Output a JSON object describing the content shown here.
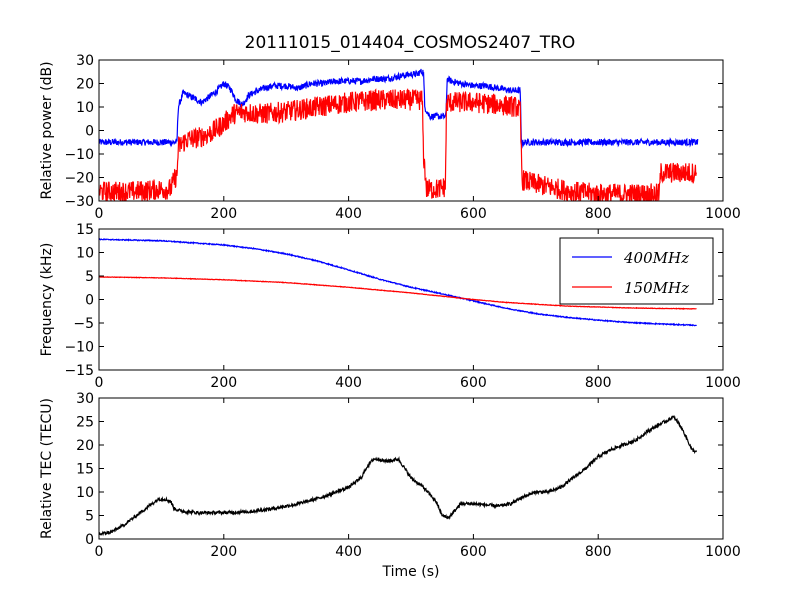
{
  "title": "20111015_014404_COSMOS2407_TRO",
  "chart_data": [
    {
      "type": "line",
      "id": "power",
      "title": "20111015_014404_COSMOS2407_TRO",
      "xlabel": "",
      "ylabel": "Relative power (dB)",
      "xlim": [
        0,
        1000
      ],
      "ylim": [
        -30,
        30
      ],
      "xticks": [
        "0",
        "200",
        "400",
        "600",
        "800",
        "1000"
      ],
      "yticks": [
        "−30",
        "−20",
        "−10",
        "0",
        "10",
        "20",
        "30"
      ],
      "grid": false,
      "series": [
        {
          "color": "#0000ff",
          "noise": 1.4,
          "x": [
            0,
            30,
            60,
            90,
            110,
            125,
            127,
            135,
            150,
            165,
            180,
            190,
            200,
            210,
            220,
            230,
            240,
            255,
            265,
            280,
            300,
            320,
            340,
            360,
            380,
            400,
            420,
            440,
            460,
            480,
            500,
            510,
            515,
            520,
            522,
            530,
            545,
            556,
            558,
            565,
            580,
            600,
            620,
            640,
            660,
            675,
            677,
            680,
            700,
            750,
            800,
            850,
            900,
            950,
            960
          ],
          "y": [
            -5,
            -5,
            -5,
            -5,
            -5,
            -5,
            10,
            16,
            14,
            12,
            15,
            17,
            20,
            18,
            13,
            11,
            15,
            17,
            18,
            19,
            19,
            18,
            20,
            20,
            21,
            21,
            21,
            22,
            22,
            23,
            24,
            24,
            25,
            25,
            10,
            6,
            6,
            6,
            22,
            21,
            20,
            19,
            19,
            18,
            17,
            17,
            -6,
            -5,
            -5,
            -5,
            -5,
            -5,
            -5,
            -5,
            -5
          ]
        },
        {
          "color": "#ff0000",
          "noise": 4.5,
          "x": [
            0,
            50,
            100,
            115,
            122,
            125,
            127,
            140,
            160,
            180,
            200,
            215,
            230,
            260,
            300,
            350,
            400,
            450,
            500,
            518,
            520,
            525,
            540,
            555,
            557,
            560,
            600,
            640,
            670,
            675,
            678,
            690,
            720,
            760,
            800,
            850,
            890,
            898,
            900,
            930,
            958
          ],
          "y": [
            -26,
            -26,
            -25,
            -25,
            -20,
            -20,
            -7,
            -4,
            -3,
            -1,
            3,
            7,
            8,
            7,
            8,
            10,
            12,
            13,
            13,
            13,
            -10,
            -25,
            -25,
            -24,
            12,
            12,
            12,
            11,
            10,
            8,
            -21,
            -22,
            -24,
            -26,
            -27,
            -27,
            -27,
            -27,
            -18,
            -18,
            -18
          ]
        }
      ]
    },
    {
      "type": "line",
      "id": "frequency",
      "xlabel": "",
      "ylabel": "Frequency (kHz)",
      "xlim": [
        0,
        1000
      ],
      "ylim": [
        -15,
        15
      ],
      "xticks": [
        "0",
        "200",
        "400",
        "600",
        "800",
        "1000"
      ],
      "yticks": [
        "−15",
        "−10",
        "−5",
        "0",
        "5",
        "10",
        "15"
      ],
      "grid": false,
      "legend_position": "top-right",
      "series": [
        {
          "name": "400MHz",
          "color": "#0000ff",
          "noise": 0.1,
          "x": [
            0,
            100,
            200,
            250,
            300,
            350,
            400,
            450,
            500,
            550,
            580,
            600,
            650,
            700,
            750,
            800,
            850,
            900,
            958
          ],
          "y": [
            12.8,
            12.5,
            11.6,
            10.8,
            9.7,
            8.2,
            6.3,
            4.3,
            2.6,
            1.2,
            0.3,
            -0.3,
            -1.8,
            -3.0,
            -3.8,
            -4.4,
            -4.9,
            -5.2,
            -5.5
          ]
        },
        {
          "name": "150MHz",
          "color": "#ff0000",
          "noise": 0.05,
          "x": [
            0,
            100,
            200,
            300,
            400,
            450,
            500,
            550,
            600,
            650,
            700,
            750,
            800,
            850,
            900,
            958
          ],
          "y": [
            4.8,
            4.6,
            4.2,
            3.6,
            2.6,
            2.0,
            1.4,
            0.7,
            0.0,
            -0.6,
            -1.0,
            -1.4,
            -1.6,
            -1.8,
            -1.9,
            -2.0
          ]
        }
      ]
    },
    {
      "type": "line",
      "id": "tec",
      "xlabel": "Time (s)",
      "ylabel": "Relative TEC (TECU)",
      "xlim": [
        0,
        1000
      ],
      "ylim": [
        0,
        30
      ],
      "xticks": [
        "0",
        "200",
        "400",
        "600",
        "800",
        "1000"
      ],
      "yticks": [
        "0",
        "5",
        "10",
        "15",
        "20",
        "25",
        "30"
      ],
      "grid": false,
      "series": [
        {
          "color": "#000000",
          "noise": 0.35,
          "x": [
            0,
            20,
            40,
            60,
            80,
            95,
            105,
            115,
            120,
            130,
            140,
            160,
            200,
            240,
            280,
            320,
            360,
            380,
            400,
            420,
            430,
            440,
            450,
            460,
            480,
            500,
            520,
            540,
            550,
            560,
            570,
            580,
            600,
            640,
            660,
            680,
            700,
            720,
            740,
            760,
            780,
            800,
            820,
            840,
            860,
            880,
            900,
            915,
            920,
            930,
            940,
            950,
            958
          ],
          "y": [
            1,
            1.5,
            3,
            5,
            7,
            8.5,
            8.5,
            8,
            6.5,
            6,
            5.8,
            5.6,
            5.6,
            5.8,
            6.5,
            7.5,
            9,
            10,
            11,
            13,
            15.5,
            17,
            17,
            16.5,
            17,
            13,
            11,
            8,
            5,
            4.5,
            6,
            7.5,
            7.5,
            7,
            7.5,
            9,
            10,
            10,
            11,
            13,
            15,
            17.5,
            19,
            20,
            21,
            23,
            24.5,
            25.5,
            26,
            24.5,
            22,
            19,
            18.5
          ]
        }
      ]
    }
  ]
}
